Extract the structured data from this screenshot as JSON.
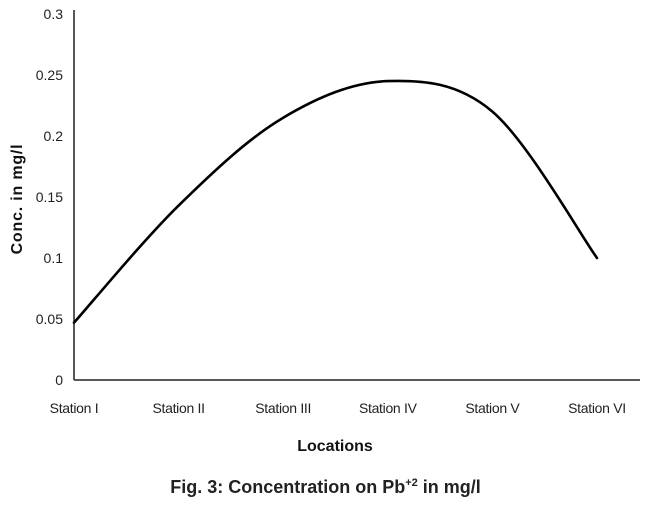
{
  "chart_data": {
    "type": "line",
    "title": "",
    "xlabel": "Locations",
    "ylabel": "Conc. in mg/l",
    "categories": [
      "Station I",
      "Station II",
      "Station III",
      "Station IV",
      "Station V",
      "Station VI"
    ],
    "series": [
      {
        "values": [
          0.047,
          0.143,
          0.215,
          0.245,
          0.22,
          0.1
        ]
      }
    ],
    "ylim": [
      0,
      0.3
    ],
    "yticks": [
      "0",
      "0.05",
      "0.1",
      "0.15",
      "0.2",
      "0.25",
      "0.3"
    ],
    "grid": false,
    "line_color": "#000000"
  },
  "caption": {
    "prefix": "Fig. 3: Concentration on Pb",
    "superscript": "+2",
    "suffix": " in mg/l"
  }
}
